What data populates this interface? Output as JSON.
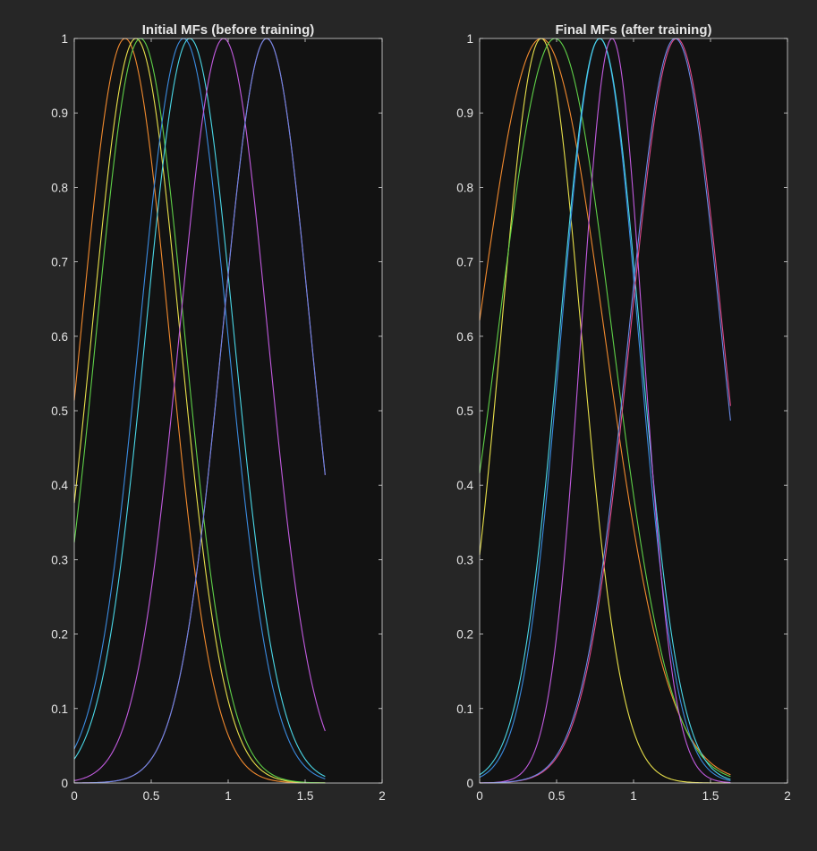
{
  "figure": {
    "background": "#262626",
    "axes_background": "#121212",
    "axes_color": "#d9d9d9"
  },
  "chart_data": [
    {
      "type": "line",
      "title": "Initial MFs (before training)",
      "xlabel": "",
      "ylabel": "",
      "xlim": [
        0,
        2
      ],
      "ylim": [
        0,
        1
      ],
      "xticks": [
        0,
        0.5,
        1,
        1.5,
        2
      ],
      "xtick_labels": [
        "0",
        "0.5",
        "1",
        "1.5",
        "2"
      ],
      "yticks": [
        0,
        0.1,
        0.2,
        0.3,
        0.4,
        0.5,
        0.6,
        0.7,
        0.8,
        0.9,
        1
      ],
      "ytick_labels": [
        "0",
        "0.1",
        "0.2",
        "0.3",
        "0.4",
        "0.5",
        "0.6",
        "0.7",
        "0.8",
        "0.9",
        "1"
      ],
      "grid": false,
      "x_range": [
        0,
        1.63
      ],
      "series": [
        {
          "kind": "gaussmf",
          "center": 0.33,
          "sigma": 0.286,
          "color": "#f28a2e"
        },
        {
          "kind": "gaussmf",
          "center": 0.4,
          "sigma": 0.286,
          "color": "#e8e04a"
        },
        {
          "kind": "gaussmf",
          "center": 0.43,
          "sigma": 0.286,
          "color": "#5fd048"
        },
        {
          "kind": "gaussmf",
          "center": 0.71,
          "sigma": 0.286,
          "color": "#3a8be0"
        },
        {
          "kind": "gaussmf",
          "center": 0.75,
          "sigma": 0.286,
          "color": "#4ad8e8"
        },
        {
          "kind": "gaussmf",
          "center": 0.97,
          "sigma": 0.286,
          "color": "#c25be0"
        },
        {
          "kind": "gaussmf",
          "center": 1.25,
          "sigma": 0.286,
          "color": "#e04a8a"
        },
        {
          "kind": "gaussmf",
          "center": 1.25,
          "sigma": 0.286,
          "color": "#6a8ae8"
        }
      ]
    },
    {
      "type": "line",
      "title": "Final MFs (after training)",
      "xlabel": "",
      "ylabel": "",
      "xlim": [
        0,
        2
      ],
      "ylim": [
        0,
        1
      ],
      "xticks": [
        0,
        0.5,
        1,
        1.5,
        2
      ],
      "xtick_labels": [
        "0",
        "0.5",
        "1",
        "1.5",
        "2"
      ],
      "yticks": [
        0,
        0.1,
        0.2,
        0.3,
        0.4,
        0.5,
        0.6,
        0.7,
        0.8,
        0.9,
        1
      ],
      "ytick_labels": [
        "0",
        "0.1",
        "0.2",
        "0.3",
        "0.4",
        "0.5",
        "0.6",
        "0.7",
        "0.8",
        "0.9",
        "1"
      ],
      "grid": false,
      "x_range": [
        0,
        1.63
      ],
      "series": [
        {
          "kind": "gaussmf",
          "center": 0.4,
          "sigma": 0.41,
          "color": "#f28a2e"
        },
        {
          "kind": "gaussmf",
          "center": 0.4,
          "sigma": 0.26,
          "color": "#e8e04a"
        },
        {
          "kind": "gaussmf",
          "center": 0.49,
          "sigma": 0.37,
          "color": "#5fd048"
        },
        {
          "kind": "gaussmf",
          "center": 0.78,
          "sigma": 0.25,
          "color": "#3a8be0"
        },
        {
          "kind": "gaussmf",
          "center": 0.78,
          "sigma": 0.26,
          "color": "#4ad8e8"
        },
        {
          "kind": "gaussmf",
          "center": 0.86,
          "sigma": 0.2,
          "color": "#c25be0"
        },
        {
          "kind": "gaussmf",
          "center": 1.28,
          "sigma": 0.3,
          "color": "#e04a8a"
        },
        {
          "kind": "gaussmf",
          "center": 1.27,
          "sigma": 0.3,
          "color": "#6a8ae8"
        }
      ]
    }
  ]
}
